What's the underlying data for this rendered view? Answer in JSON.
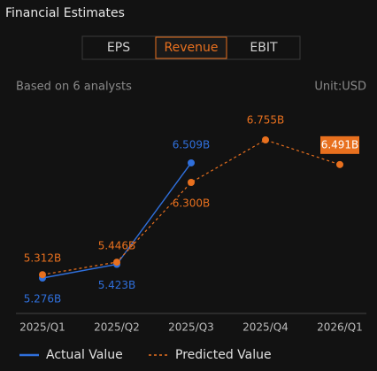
{
  "chart_data": {
    "type": "line",
    "title": "Financial Estimates",
    "tabs": [
      "EPS",
      "Revenue",
      "EBIT"
    ],
    "active_tab": 1,
    "subtitle": "Based on 6 analysts",
    "unit": "Unit:USD",
    "categories": [
      "2025/Q1",
      "2025/Q2",
      "2025/Q3",
      "2025/Q4",
      "2026/Q1"
    ],
    "series": [
      {
        "name": "Actual Value",
        "color": "#2f6fdb",
        "dash": false,
        "values": [
          5.276,
          5.423,
          6.509,
          null,
          null
        ],
        "value_labels": [
          "5.276B",
          "5.423B",
          "6.509B",
          null,
          null
        ]
      },
      {
        "name": "Predicted Value",
        "color": "#e8701e",
        "dash": true,
        "values": [
          5.312,
          5.446,
          6.3,
          6.755,
          6.491
        ],
        "value_labels": [
          "5.312B",
          "5.446B",
          "6.300B",
          "6.755B",
          "6.491B"
        ]
      }
    ]
  }
}
